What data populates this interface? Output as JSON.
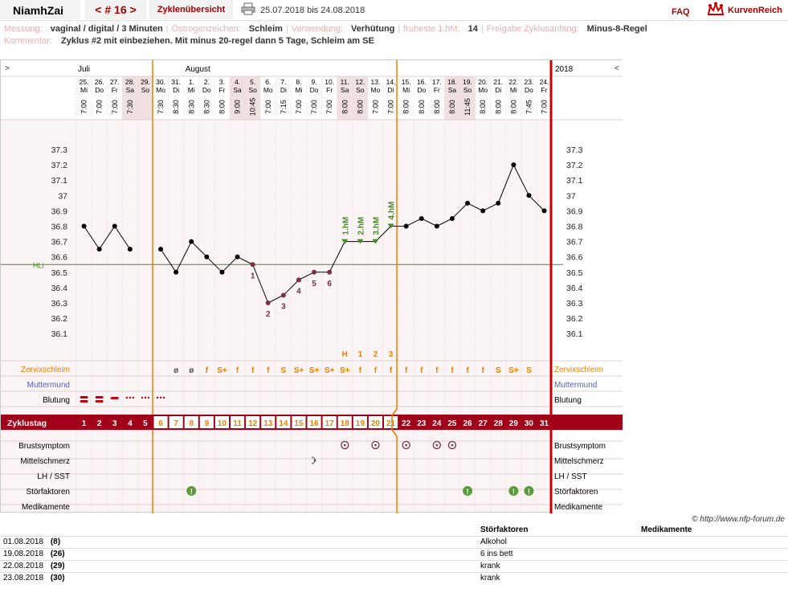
{
  "header": {
    "user": "NiamhZai",
    "cycle": "< # 16 >",
    "overview": "Zyklenübersicht",
    "range": "25.07.2018 bis 24.08.2018",
    "faq": "FAQ",
    "brand": "KurvenReich"
  },
  "meta_line1": [
    {
      "k": "Messung:",
      "v": "vaginal / digital / 3 Minuten"
    },
    {
      "k": "Östrogenzeichen:",
      "v": "Schleim"
    },
    {
      "k": "Verwendung:",
      "v": "Verhütung"
    },
    {
      "k": "früheste 1.hM:",
      "v": "14"
    },
    {
      "k": "Freigabe Zyklusanfang:",
      "v": "Minus-8-Regel"
    }
  ],
  "meta_line2": {
    "k": "Kommentar:",
    "v": "Zyklus #2  mit einbeziehen. Mit minus 20-regel dann 5 Tage,  Schleim am SE"
  },
  "colors": {
    "accent": "#a00018",
    "ovulation_line": "#f08000",
    "end_line": "#cc0000",
    "hl_line": "#4a8a2a",
    "weekend": "#f0e0e0"
  },
  "nav": {
    "left": ">",
    "right": "<",
    "year": "2018"
  },
  "months": [
    {
      "label": "Juli",
      "day": 0
    },
    {
      "label": "August",
      "day": 7
    }
  ],
  "chart_data": {
    "type": "line",
    "title": "",
    "ylabel": "",
    "ylim": [
      36.0,
      37.4
    ],
    "yticks": [
      36.1,
      36.2,
      36.3,
      36.4,
      36.5,
      36.6,
      36.7,
      36.8,
      36.9,
      37,
      37.1,
      37.2,
      37.3
    ],
    "hl_value": 36.55,
    "hl_label": "HLi",
    "dates": [
      "25.",
      "26.",
      "27.",
      "28.",
      "29.",
      "30.",
      "31.",
      "1.",
      "2.",
      "3.",
      "4.",
      "5.",
      "6.",
      "7.",
      "8.",
      "9.",
      "10.",
      "11.",
      "12.",
      "13.",
      "14.",
      "15.",
      "16.",
      "17.",
      "18.",
      "19.",
      "20.",
      "21.",
      "22.",
      "23.",
      "24."
    ],
    "weekdays": [
      "Mi",
      "Do",
      "Fr",
      "Sa",
      "So",
      "Mo",
      "Di",
      "Mi",
      "Do",
      "Fr",
      "Sa",
      "So",
      "Mo",
      "Di",
      "Mi",
      "Do",
      "Fr",
      "Sa",
      "So",
      "Mo",
      "Di",
      "Mi",
      "Do",
      "Fr",
      "Sa",
      "So",
      "Mo",
      "Di",
      "Mi",
      "Do",
      "Fr"
    ],
    "times": [
      "7:00",
      "7:00",
      "7:00",
      "7:30",
      "",
      "7:30",
      "8:30",
      "8:30",
      "8:30",
      "8:00",
      "9:00",
      "10:45",
      "7:00",
      "7:15",
      "7:00",
      "7:00",
      "7:00",
      "8:00",
      "8:00",
      "7:00",
      "7:00",
      "8:00",
      "8:00",
      "8:00",
      "8:00",
      "11:45",
      "8:00",
      "8:00",
      "8:00",
      "7:45",
      "7:00"
    ],
    "weekend": [
      3,
      4,
      10,
      11,
      17,
      18,
      24,
      25
    ],
    "temps": [
      36.8,
      36.65,
      36.8,
      36.65,
      null,
      36.65,
      36.5,
      36.7,
      36.6,
      36.5,
      36.6,
      36.55,
      36.3,
      36.35,
      36.45,
      36.5,
      36.5,
      36.7,
      36.7,
      36.7,
      36.8,
      36.8,
      36.85,
      36.8,
      36.85,
      36.95,
      36.9,
      36.95,
      37.2,
      37.0,
      36.9
    ],
    "count_labels": [
      {
        "day": 11,
        "text": "1"
      },
      {
        "day": 12,
        "text": "2"
      },
      {
        "day": 13,
        "text": "3"
      },
      {
        "day": 14,
        "text": "4"
      },
      {
        "day": 15,
        "text": "5"
      },
      {
        "day": 16,
        "text": "6"
      }
    ],
    "hm_labels": [
      {
        "day": 17,
        "text": "1.hM"
      },
      {
        "day": 18,
        "text": "2.hM"
      },
      {
        "day": 19,
        "text": "3.hM"
      },
      {
        "day": 20,
        "text": "4.hM"
      }
    ],
    "peak_labels": [
      {
        "day": 17,
        "text": "H"
      },
      {
        "day": 18,
        "text": "1"
      },
      {
        "day": 19,
        "text": "2"
      },
      {
        "day": 20,
        "text": "3"
      }
    ],
    "cycle_days": [
      "1",
      "2",
      "3",
      "4",
      "5",
      "6",
      "7",
      "8",
      "9",
      "10",
      "11",
      "12",
      "13",
      "14",
      "15",
      "16",
      "17",
      "18",
      "19",
      "20",
      "21",
      "22",
      "23",
      "24",
      "25",
      "26",
      "27",
      "28",
      "29",
      "30",
      "31"
    ]
  },
  "rows": {
    "zervix": {
      "label": "Zervixschleim",
      "values": [
        "",
        "",
        "",
        "",
        "",
        "",
        "ø",
        "ø",
        "f",
        "S+",
        "f",
        "f",
        "f",
        "S",
        "S+",
        "S+",
        "S+",
        "S+",
        "f",
        "f",
        "f",
        "f",
        "f",
        "f",
        "f",
        "f",
        "f",
        "S",
        "S+",
        "S",
        ""
      ]
    },
    "muttermund": {
      "label": "Muttermund"
    },
    "blutung": {
      "label": "Blutung"
    },
    "zyklustag": {
      "label": "Zyklustag"
    },
    "brust": {
      "label": "Brustsymptom"
    },
    "mittel": {
      "label": "Mittelschmerz"
    },
    "lh": {
      "label": "LH / SST"
    },
    "stoer": {
      "label": "Störfaktoren"
    },
    "medi": {
      "label": "Medikamente"
    }
  },
  "copyright": "© http://www.nfp-forum.de",
  "events": {
    "col_stoer": "Störfaktoren",
    "col_medi": "Medikamente",
    "items": [
      {
        "date": "01.08.2018",
        "day": "(8)",
        "stoer": "Alkohol"
      },
      {
        "date": "19.08.2018",
        "day": "(26)",
        "stoer": "6 ins bett"
      },
      {
        "date": "22.08.2018",
        "day": "(29)",
        "stoer": "krank"
      },
      {
        "date": "23.08.2018",
        "day": "(30)",
        "stoer": "krank"
      }
    ]
  }
}
